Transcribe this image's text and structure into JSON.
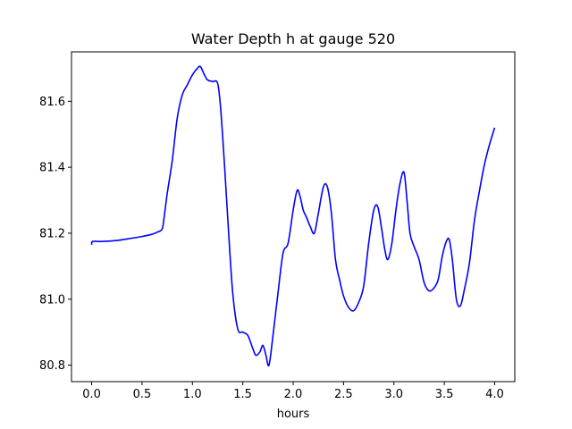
{
  "chart_data": {
    "type": "line",
    "title": "Water Depth h at gauge 520",
    "xlabel": "hours",
    "ylabel": "",
    "xlim": [
      -0.2,
      4.2
    ],
    "ylim": [
      80.75,
      81.75
    ],
    "xticks": [
      0.0,
      0.5,
      1.0,
      1.5,
      2.0,
      2.5,
      3.0,
      3.5,
      4.0
    ],
    "xtick_labels": [
      "0.0",
      "0.5",
      "1.0",
      "1.5",
      "2.0",
      "2.5",
      "3.0",
      "3.5",
      "4.0"
    ],
    "yticks": [
      80.8,
      81.0,
      81.2,
      81.4,
      81.6
    ],
    "ytick_labels": [
      "80.8",
      "81.0",
      "81.2",
      "81.4",
      "81.6"
    ],
    "grid": false,
    "color": "#0000ff",
    "series": [
      {
        "x": [
          0.0,
          0.01,
          0.1,
          0.25,
          0.4,
          0.5,
          0.6,
          0.65,
          0.7,
          0.72,
          0.75,
          0.8,
          0.85,
          0.9,
          0.95,
          1.0,
          1.05,
          1.08,
          1.12,
          1.15,
          1.2,
          1.25,
          1.28,
          1.32,
          1.36,
          1.4,
          1.45,
          1.5,
          1.55,
          1.6,
          1.63,
          1.67,
          1.7,
          1.73,
          1.76,
          1.8,
          1.85,
          1.9,
          1.95,
          2.0,
          2.04,
          2.07,
          2.1,
          2.13,
          2.17,
          2.21,
          2.25,
          2.3,
          2.34,
          2.38,
          2.42,
          2.46,
          2.5,
          2.55,
          2.6,
          2.65,
          2.7,
          2.75,
          2.8,
          2.84,
          2.88,
          2.91,
          2.94,
          2.98,
          3.02,
          3.06,
          3.1,
          3.13,
          3.16,
          3.2,
          3.25,
          3.3,
          3.35,
          3.4,
          3.44,
          3.48,
          3.52,
          3.55,
          3.58,
          3.62,
          3.66,
          3.7,
          3.75,
          3.8,
          3.85,
          3.9,
          3.95,
          4.0
        ],
        "y": [
          81.165,
          81.175,
          81.175,
          81.178,
          81.185,
          81.19,
          81.197,
          81.203,
          81.213,
          81.25,
          81.32,
          81.42,
          81.55,
          81.62,
          81.65,
          81.68,
          81.7,
          81.705,
          81.68,
          81.665,
          81.66,
          81.655,
          81.58,
          81.4,
          81.2,
          81.02,
          80.91,
          80.9,
          80.89,
          80.85,
          80.83,
          80.84,
          80.86,
          80.83,
          80.8,
          80.89,
          81.02,
          81.14,
          81.17,
          81.27,
          81.33,
          81.31,
          81.27,
          81.25,
          81.22,
          81.2,
          81.26,
          81.34,
          81.34,
          81.26,
          81.12,
          81.06,
          81.01,
          80.975,
          80.965,
          80.99,
          81.04,
          81.17,
          81.27,
          81.28,
          81.21,
          81.15,
          81.12,
          81.17,
          81.27,
          81.35,
          81.385,
          81.3,
          81.2,
          81.16,
          81.12,
          81.05,
          81.025,
          81.035,
          81.06,
          81.13,
          81.175,
          81.18,
          81.12,
          81.0,
          80.98,
          81.03,
          81.11,
          81.24,
          81.33,
          81.41,
          81.47,
          81.52
        ]
      }
    ]
  }
}
